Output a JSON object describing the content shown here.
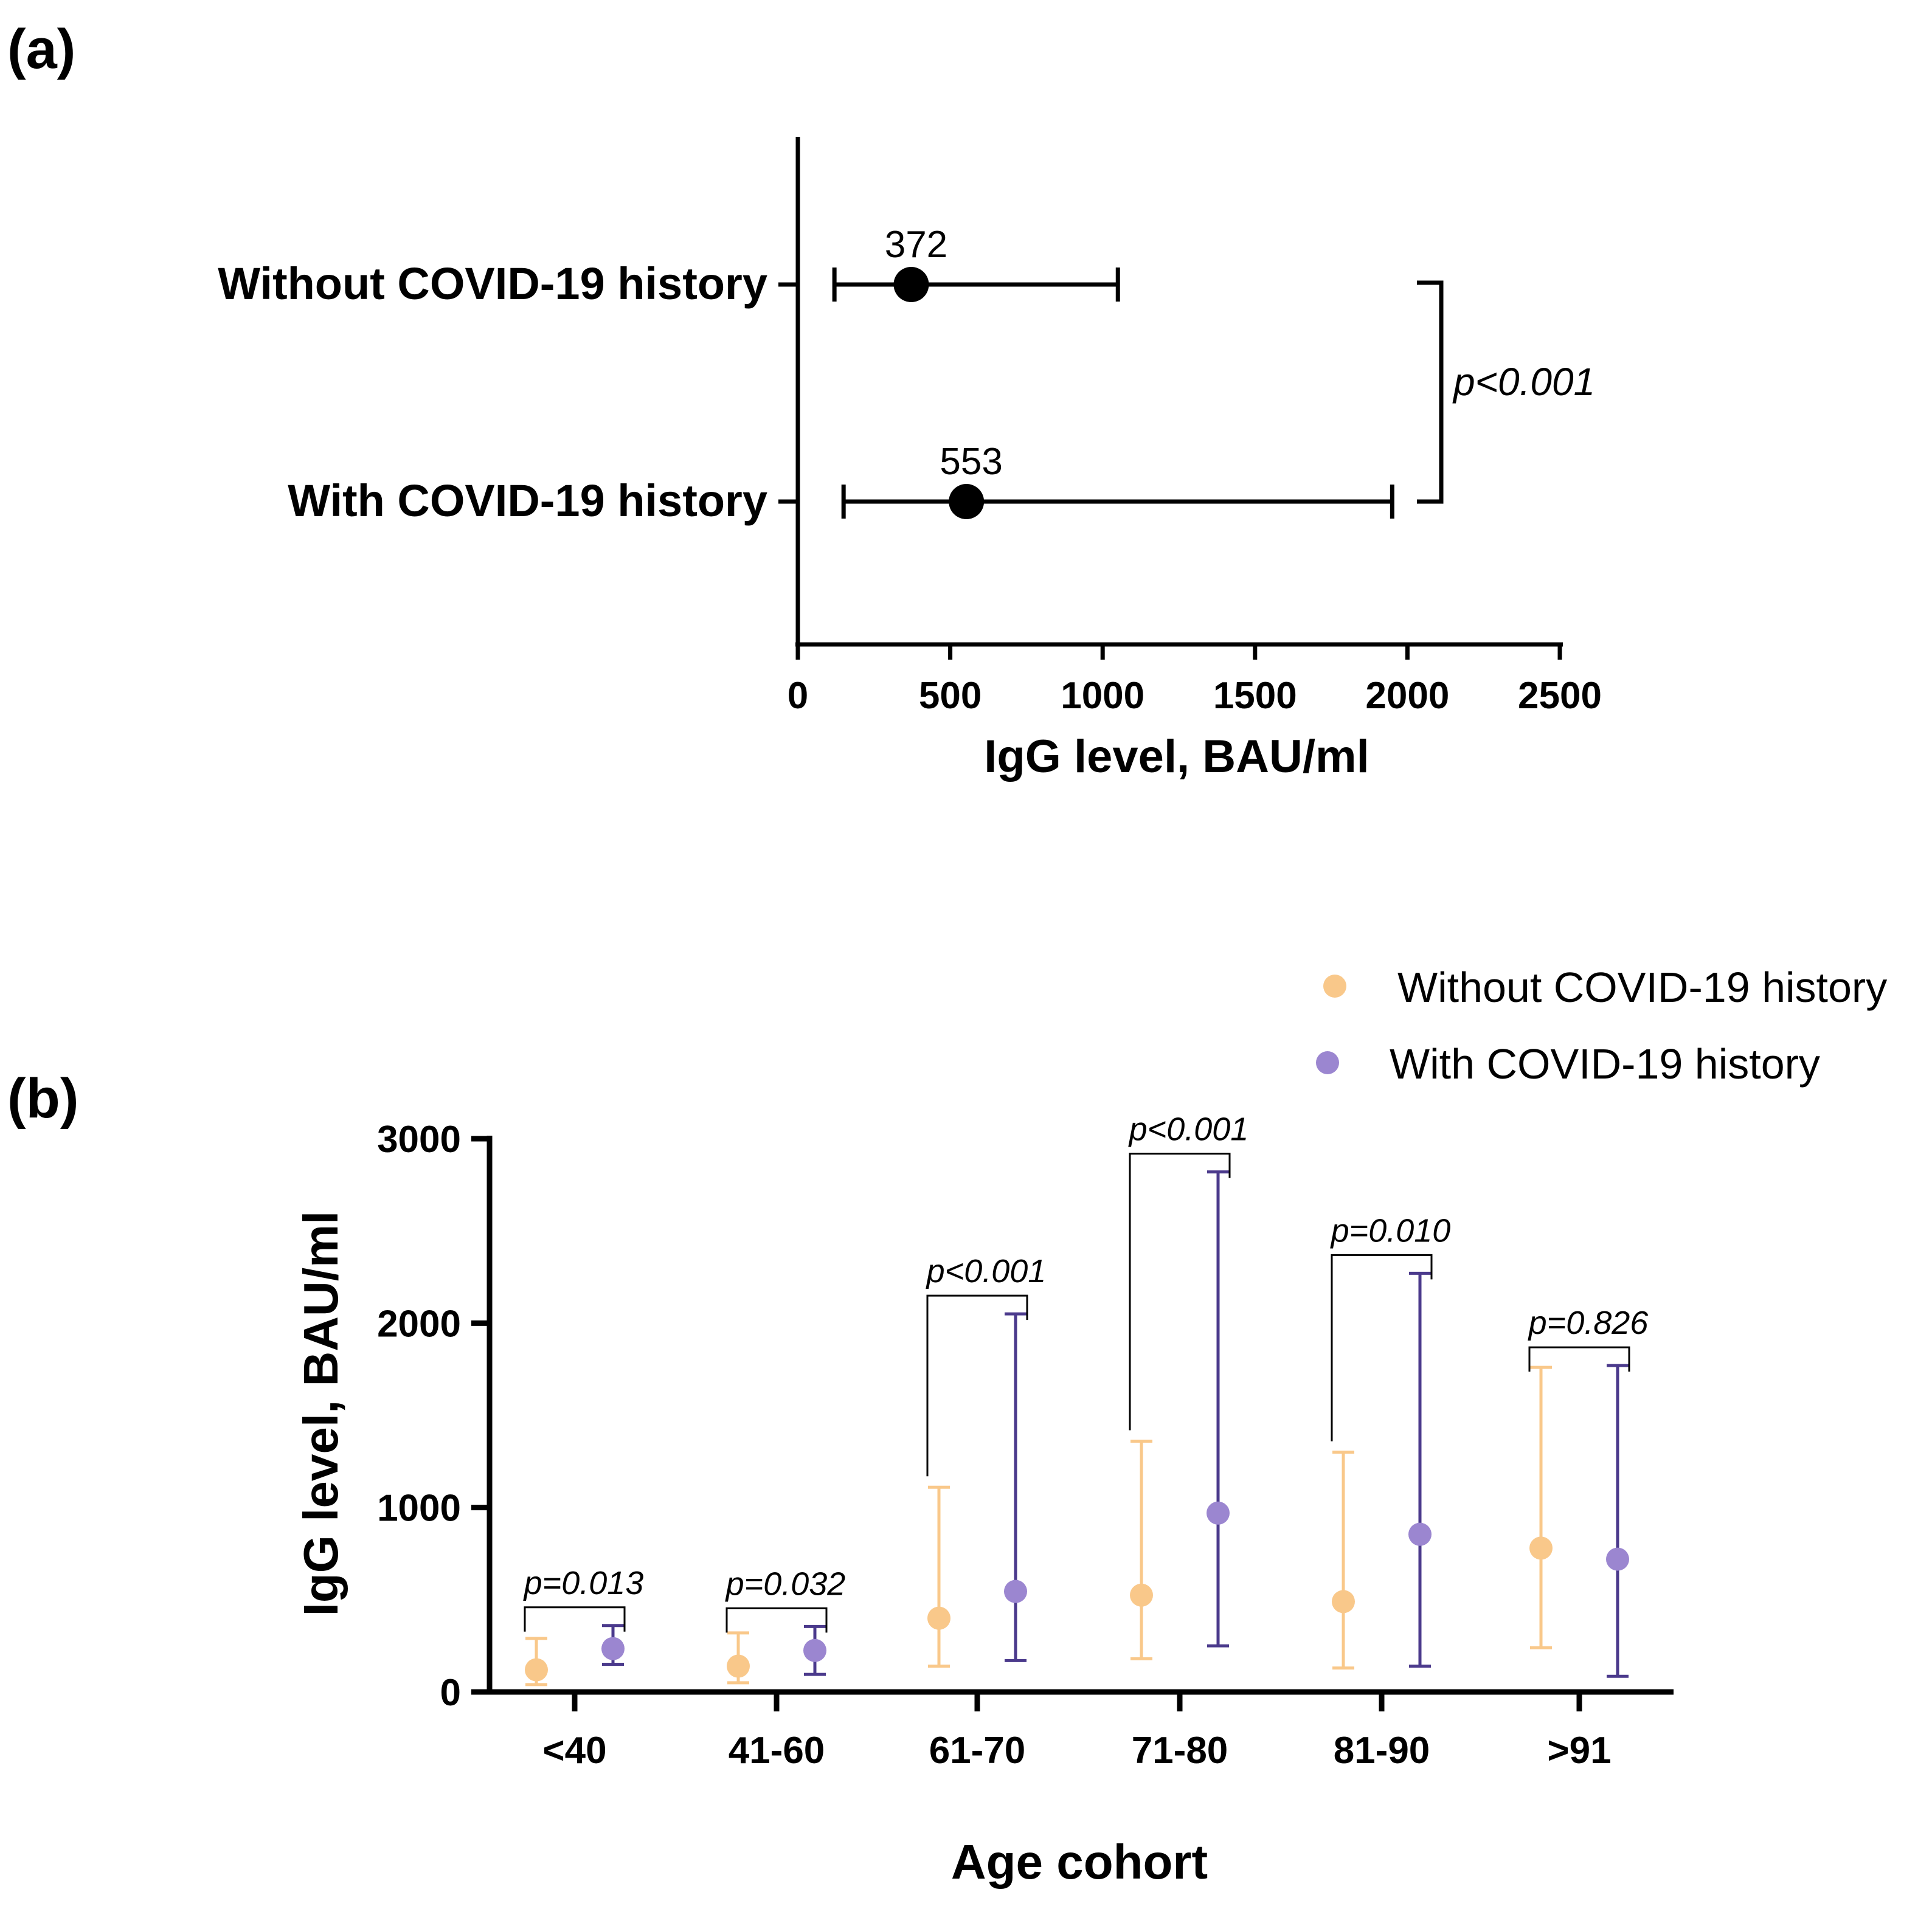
{
  "chart_data": [
    {
      "panel": "(a)",
      "type": "dot-errorbar",
      "orientation": "horizontal",
      "xlabel": "IgG level, BAU/ml",
      "xlim": [
        0,
        2500
      ],
      "xticks": [
        0,
        500,
        1000,
        1500,
        2000,
        2500
      ],
      "xtick_labels": [
        "0",
        "500",
        "1000",
        "1500",
        "2000",
        "2500"
      ],
      "categories": [
        "Without COVID-19 history",
        "With COVID-19 history"
      ],
      "points": [
        {
          "label": "Without COVID-19 history",
          "value": 372,
          "value_label": "372",
          "low": 120,
          "high": 1050
        },
        {
          "label": "With COVID-19 history",
          "value": 553,
          "value_label": "553",
          "low": 150,
          "high": 1950
        }
      ],
      "comparison": {
        "text": "p<0.001"
      },
      "color": "#000000"
    },
    {
      "panel": "(b)",
      "type": "dot-errorbar",
      "orientation": "vertical",
      "xlabel": "Age cohort",
      "ylabel": "IgG level, BAU/ml",
      "ylim": [
        0,
        3000
      ],
      "yticks": [
        0,
        1000,
        2000,
        3000
      ],
      "ytick_labels": [
        "0",
        "1000",
        "2000",
        "3000"
      ],
      "categories": [
        "<40",
        "41-60",
        "61-70",
        "71-80",
        "81-90",
        ">91"
      ],
      "series": [
        {
          "name": "Without COVID-19 history",
          "color": "#F9C88A",
          "values": [
            120,
            140,
            400,
            525,
            490,
            780
          ],
          "low": [
            40,
            50,
            140,
            180,
            130,
            240
          ],
          "high": [
            290,
            320,
            1110,
            1360,
            1300,
            1760
          ]
        },
        {
          "name": "With COVID-19 history",
          "color": "#9B86D0",
          "bar_color": "#4B3A8C",
          "values": [
            235,
            225,
            545,
            970,
            855,
            720
          ],
          "low": [
            150,
            95,
            170,
            250,
            140,
            85
          ],
          "high": [
            360,
            355,
            2050,
            2820,
            2270,
            1770
          ]
        }
      ],
      "pvalues": [
        "p=0.013",
        "p=0.032",
        "p<0.001",
        "p<0.001",
        "p=0.010",
        "p=0.826"
      ]
    }
  ]
}
